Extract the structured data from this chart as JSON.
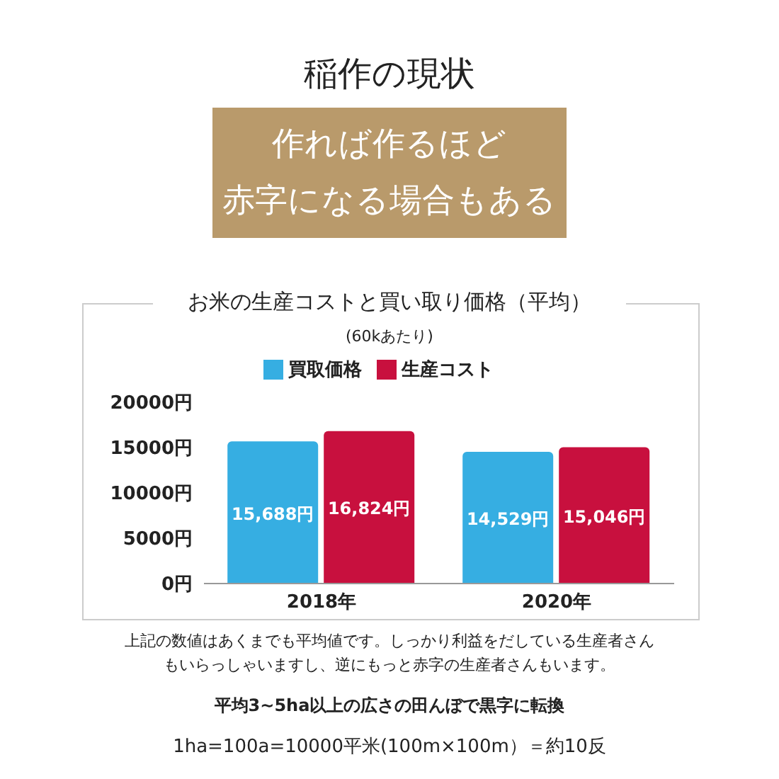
{
  "chart_data": {
    "type": "bar",
    "title": "稲作の現状",
    "subtitle": "作れば作るほど",
    "ylabel": "お米の生産コストと買い取り価格（平均）",
    "xlabel": "(60kあたり)",
    "categories": [
      "2018年",
      "2020年"
    ],
    "series": [
      {
        "name": "買取価格",
        "color": "#36aee2",
        "values": [
          15688,
          14529
        ],
        "value_labels": [
          "15,688円",
          "14,529円"
        ]
      },
      {
        "name": "生産コスト",
        "color": "#c8103e",
        "values": [
          16824,
          15046
        ],
        "value_labels": [
          "16,824円",
          "15,046円"
        ]
      }
    ],
    "ylim": [
      0,
      20000
    ],
    "yticks": [
      {
        "value": 0,
        "label": "0円"
      },
      {
        "value": 5000,
        "label": "5000円"
      },
      {
        "value": 10000,
        "label": "10000円"
      },
      {
        "value": 15000,
        "label": "15000円"
      },
      {
        "value": 20000,
        "label": "20000円"
      }
    ],
    "grid": false,
    "legend": "top",
    "annotations": [
      "赤字になる場合もある",
      "上記の数値はあくまでも平均値です。しっかり利益をだしている生産者さんもいらっしゃいますし、逆にもっと赤字の生産者さんもいます。",
      "平均3~5ha以上の広さの田んぼで黒字に転換",
      "1ha=100a=10000平米(100m×100m）＝約10反"
    ]
  }
}
